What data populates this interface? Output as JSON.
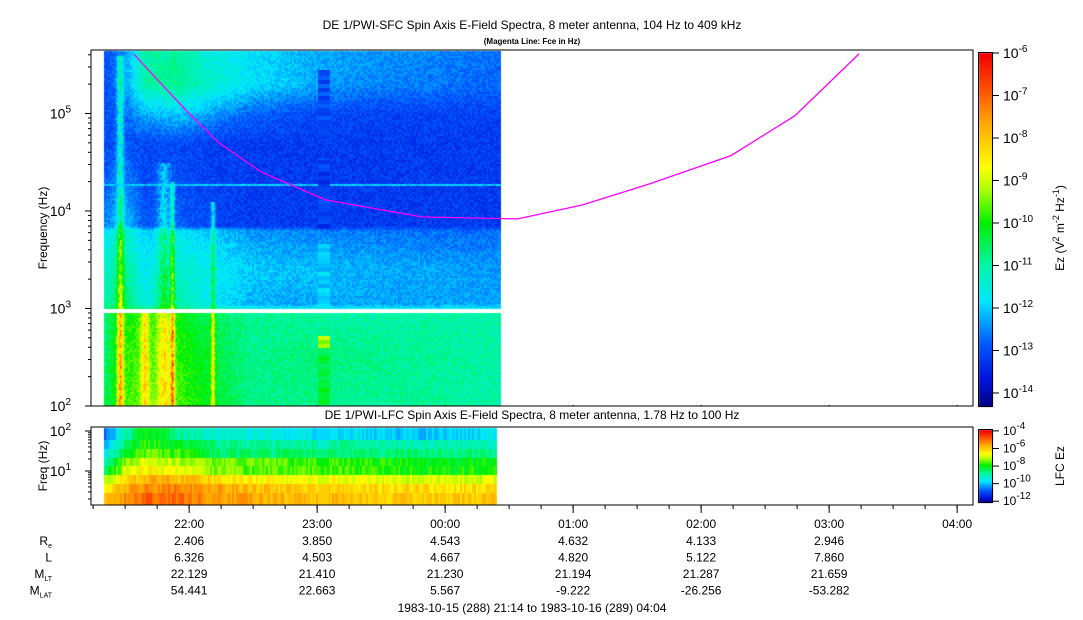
{
  "chart_data": [
    {
      "type": "heatmap",
      "panel": "upper",
      "title": "DE 1/PWI-SFC  Spin Axis E-Field Spectra, 8 meter antenna, 104 Hz to 409 kHz",
      "subtitle": "(Magenta Line: Fce in Hz)",
      "ylabel": "Frequency (Hz)",
      "yscale": "log",
      "ylim_hz": [
        100,
        409000
      ],
      "yticks": [
        {
          "exp": 2,
          "base": "10",
          "sup": "2"
        },
        {
          "exp": 3,
          "base": "10",
          "sup": "3"
        },
        {
          "exp": 4,
          "base": "10",
          "sup": "4"
        },
        {
          "exp": 5,
          "base": "10",
          "sup": "5"
        }
      ],
      "colorbar": {
        "label": "Ez (V",
        "label_parts": [
          "Ez (V",
          "2",
          " m",
          "-2",
          " Hz",
          "-1",
          ")"
        ],
        "range_log10": [
          -14.33,
          -6
        ],
        "ticks": [
          {
            "exp": -6,
            "sup": "-6"
          },
          {
            "exp": -7,
            "sup": "-7"
          },
          {
            "exp": -8,
            "sup": "-8"
          },
          {
            "exp": -9,
            "sup": "-9"
          },
          {
            "exp": -10,
            "sup": "-10"
          },
          {
            "exp": -11,
            "sup": "-11"
          },
          {
            "exp": -12,
            "sup": "-12"
          },
          {
            "exp": -13,
            "sup": "-13"
          },
          {
            "exp": -14,
            "sup": "-14"
          }
        ]
      },
      "time_minutes_since_2114": [
        6,
        15,
        25,
        40,
        55,
        75,
        100,
        130,
        160,
        192
      ],
      "freq_log10_hz": [
        2.0,
        2.5,
        2.95,
        3.05,
        3.4,
        3.8,
        3.85,
        4.3,
        4.7,
        5.0,
        5.3,
        5.61
      ],
      "log10_ez": [
        [
          -10.5,
          -9.8,
          -9.5,
          -9.6,
          -10.2,
          -10.8,
          -10.8,
          -10.9,
          -10.9,
          -11
        ],
        [
          -10.6,
          -9.9,
          -9.6,
          -9.8,
          -10.3,
          -10.8,
          -10.7,
          -10.8,
          -10.9,
          -11
        ],
        [
          -10.7,
          -10,
          -9.8,
          -10,
          -10.5,
          -10.9,
          -10.9,
          -11,
          -11,
          -11
        ],
        [
          -11,
          -10.5,
          -11.5,
          -11,
          -11.7,
          -12.2,
          -12.3,
          -12.3,
          -12.3,
          -12.3
        ],
        [
          -11.3,
          -10.8,
          -11.7,
          -11.3,
          -11.6,
          -12,
          -12.1,
          -12.2,
          -12.3,
          -12.4
        ],
        [
          -11.8,
          -11.2,
          -12,
          -11.8,
          -12,
          -12.4,
          -12.5,
          -12.6,
          -12.7,
          -12.7
        ],
        [
          -12.5,
          -12,
          -12.9,
          -12.8,
          -13,
          -13.2,
          -13.2,
          -13.2,
          -13.2,
          -13.2
        ],
        [
          -12.8,
          -12.5,
          -13,
          -13,
          -13.1,
          -13.2,
          -13.2,
          -13.2,
          -13.2,
          -13.2
        ],
        [
          -13,
          -12.9,
          -13.1,
          -13,
          -13.2,
          -13.2,
          -13.2,
          -13.2,
          -13.2,
          -13.2
        ],
        [
          -13,
          -12.8,
          -12.2,
          -12,
          -12.3,
          -12.8,
          -13,
          -13.1,
          -13.1,
          -13.1
        ],
        [
          -13,
          -12.5,
          -11,
          -10.8,
          -11.3,
          -11.8,
          -12.2,
          -12.5,
          -12.6,
          -12.8
        ],
        [
          -13,
          -12.5,
          -11,
          -10.9,
          -11.5,
          -11.8,
          -12.2,
          -12.4,
          -12.5,
          -12.7
        ]
      ],
      "data_interval_minutes": [
        6,
        192
      ],
      "bursts": [
        {
          "t": 13.5,
          "w": 1.5,
          "amp": 2.5,
          "fmax": 5.6
        },
        {
          "t": 25,
          "w": 2,
          "amp": 1.5,
          "fmax": 3.0
        },
        {
          "t": 34,
          "w": 3,
          "amp": 1.5,
          "fmax": 4.5
        },
        {
          "t": 38,
          "w": 1,
          "amp": 2.5,
          "fmax": 4.3
        },
        {
          "t": 57,
          "w": 1,
          "amp": 2.0,
          "fmax": 4.1
        }
      ],
      "gap_log10_hz": [
        2.96,
        3.0
      ],
      "line_18khz_log10": 4.27,
      "stripe": {
        "t": [
          106.5,
          112
        ],
        "segments": [
          {
            "f": [
              4.72,
              5.45
            ],
            "v": -13.0
          },
          {
            "f": [
              3.82,
              4.54
            ],
            "v": -13.2
          },
          {
            "f": [
              3.02,
              3.66
            ],
            "v": -12.0
          },
          {
            "f": [
              2.6,
              2.72
            ],
            "v": -9.2
          },
          {
            "f": [
              2.0,
              2.6
            ],
            "v": -10.3
          }
        ]
      },
      "fce_line": {
        "color": "#ff00ff",
        "t_minutes": [
          20,
          34,
          46,
          60,
          80,
          110,
          155,
          200,
          230,
          262,
          300,
          330,
          360
        ],
        "hz": [
          409000,
          190000,
          100000,
          50000,
          25000,
          13000,
          8700,
          8300,
          11500,
          19000,
          37000,
          95000,
          409000
        ]
      }
    },
    {
      "type": "heatmap",
      "panel": "lower",
      "title": "DE 1/PWI-LFC  Spin Axis E-Field Spectra, 8 meter antenna, 1.78 Hz to 100 Hz",
      "ylabel": "Freq (Hz)",
      "yscale": "log",
      "ylim_hz": [
        1.78,
        100
      ],
      "yticks": [
        {
          "exp": 1,
          "base": "10",
          "sup": "1"
        },
        {
          "exp": 2,
          "base": "10",
          "sup": "2"
        }
      ],
      "colorbar": {
        "label": "LFC Ez",
        "range_log10": [
          -12.2,
          -3.9
        ],
        "ticks": [
          {
            "exp": -4,
            "sup": "-4"
          },
          {
            "exp": -6,
            "sup": "-6"
          },
          {
            "exp": -8,
            "sup": "-8"
          },
          {
            "exp": -10,
            "sup": "-10"
          },
          {
            "exp": -12,
            "sup": "-12"
          }
        ]
      },
      "time_minutes_since_2114": [
        6,
        15,
        25,
        40,
        55,
        75,
        100,
        130,
        160,
        192
      ],
      "bins": 8,
      "log10_ez": [
        [
          -6,
          -5.4,
          -4.9,
          -5,
          -5.3,
          -5.6,
          -5.8,
          -5.9,
          -6,
          -5.9
        ],
        [
          -6.5,
          -5.6,
          -5.2,
          -5.2,
          -5.5,
          -5.8,
          -6,
          -6.1,
          -6.2,
          -6.2
        ],
        [
          -7.2,
          -6.2,
          -5.7,
          -5.8,
          -6.1,
          -6.5,
          -6.5,
          -6.7,
          -6.8,
          -6.8
        ],
        [
          -8.6,
          -7,
          -6.4,
          -6.6,
          -7.2,
          -7.5,
          -7.5,
          -7.7,
          -7.9,
          -7.8
        ],
        [
          -9,
          -7.3,
          -6.8,
          -7,
          -7.3,
          -7.4,
          -7.6,
          -7.8,
          -8,
          -8
        ],
        [
          -9.8,
          -8.2,
          -7.4,
          -7.6,
          -8.4,
          -8.6,
          -8.5,
          -8.5,
          -8.6,
          -8.6
        ],
        [
          -10,
          -8.6,
          -7.8,
          -8,
          -8.6,
          -8.8,
          -8.8,
          -8.9,
          -9,
          -9
        ],
        [
          -10.8,
          -9.2,
          -8,
          -8.6,
          -9.2,
          -9.4,
          -9.6,
          -9.8,
          -9.9,
          -9.6
        ]
      ],
      "data_interval_minutes": [
        6,
        190.5
      ],
      "stripe": {
        "t": [
          106.5,
          111.5
        ],
        "bins": [
          -6,
          -6,
          -6.9,
          null,
          -7.9,
          -8.6,
          -9.2,
          -9.8
        ]
      }
    }
  ],
  "time_axis": {
    "start_minutes_label": "21:14",
    "ticks": [
      {
        "t": 46,
        "label": "22:00"
      },
      {
        "t": 106,
        "label": "23:00"
      },
      {
        "t": 166,
        "label": "00:00"
      },
      {
        "t": 226,
        "label": "01:00"
      },
      {
        "t": 286,
        "label": "02:00"
      },
      {
        "t": 346,
        "label": "03:00"
      },
      {
        "t": 406,
        "label": "04:00"
      }
    ]
  },
  "ephemeris": {
    "rows": [
      {
        "label": "R",
        "sub": "e",
        "values": [
          "2.406",
          "3.850",
          "4.543",
          "4.632",
          "4.133",
          "2.946"
        ]
      },
      {
        "label": "L",
        "sub": "",
        "values": [
          "6.326",
          "4.503",
          "4.667",
          "4.820",
          "5.122",
          "7.860"
        ]
      },
      {
        "label": "M",
        "sub": "LT",
        "values": [
          "22.129",
          "21.410",
          "21.230",
          "21.194",
          "21.287",
          "21.659"
        ]
      },
      {
        "label": "M",
        "sub": "LAT",
        "values": [
          "54.441",
          "22.663",
          "5.567",
          "-9.222",
          "-26.256",
          "-53.282"
        ]
      }
    ]
  },
  "footer": "1983-10-15 (288) 21:14 to 1983-10-16 (289) 04:04"
}
